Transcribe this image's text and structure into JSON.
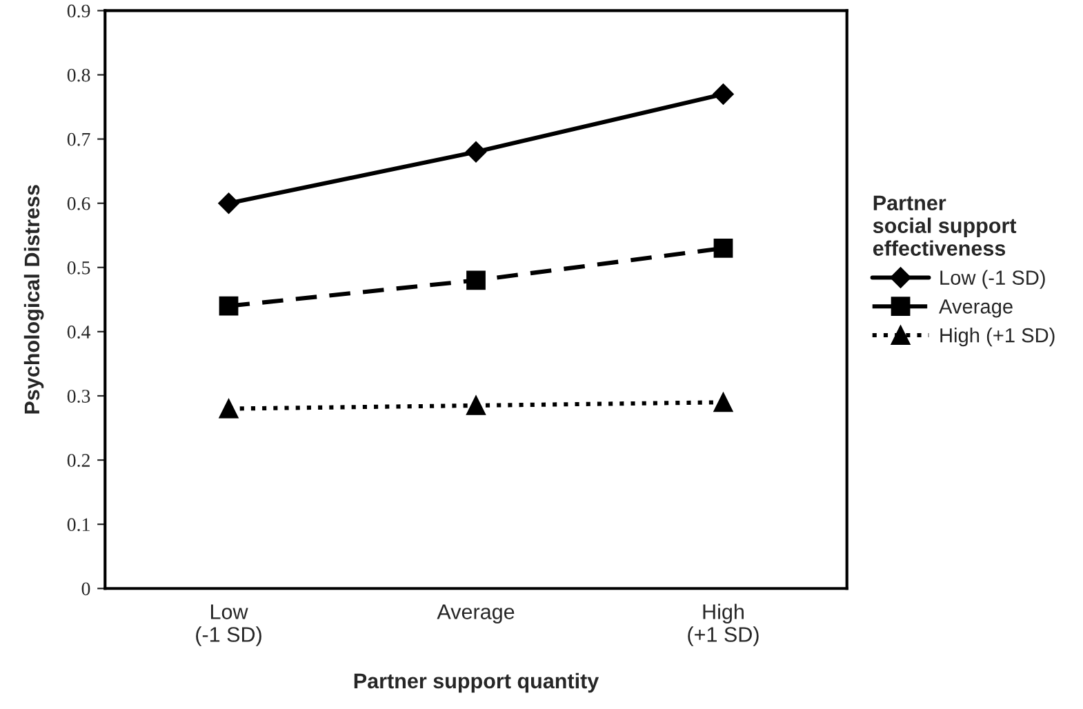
{
  "chart_data": {
    "type": "line",
    "xlabel": "Partner support quantity",
    "ylabel": "Psychological Distress",
    "legend_title": "Partner\nsocial support\neffectiveness",
    "categories": [
      "Low\n(-1 SD)",
      "Average",
      "High\n(+1 SD)"
    ],
    "series": [
      {
        "name": "Low (-1 SD)",
        "color": "#000000",
        "values": [
          0.6,
          0.68,
          0.77
        ],
        "marker": "diamond",
        "line_style": "solid"
      },
      {
        "name": "Average",
        "color": "#000000",
        "values": [
          0.44,
          0.48,
          0.53
        ],
        "marker": "square",
        "line_style": "dashed"
      },
      {
        "name": "High (+1 SD)",
        "color": "#000000",
        "values": [
          0.28,
          0.285,
          0.29
        ],
        "marker": "triangle",
        "line_style": "dotted"
      }
    ],
    "ylim": [
      0,
      0.9
    ],
    "yticks": [
      {
        "value": 0,
        "label": "0"
      },
      0.1,
      0.2,
      0.3,
      0.4,
      0.5,
      0.6,
      0.7,
      0.8,
      0.9
    ],
    "grid": false,
    "legend": "right"
  }
}
